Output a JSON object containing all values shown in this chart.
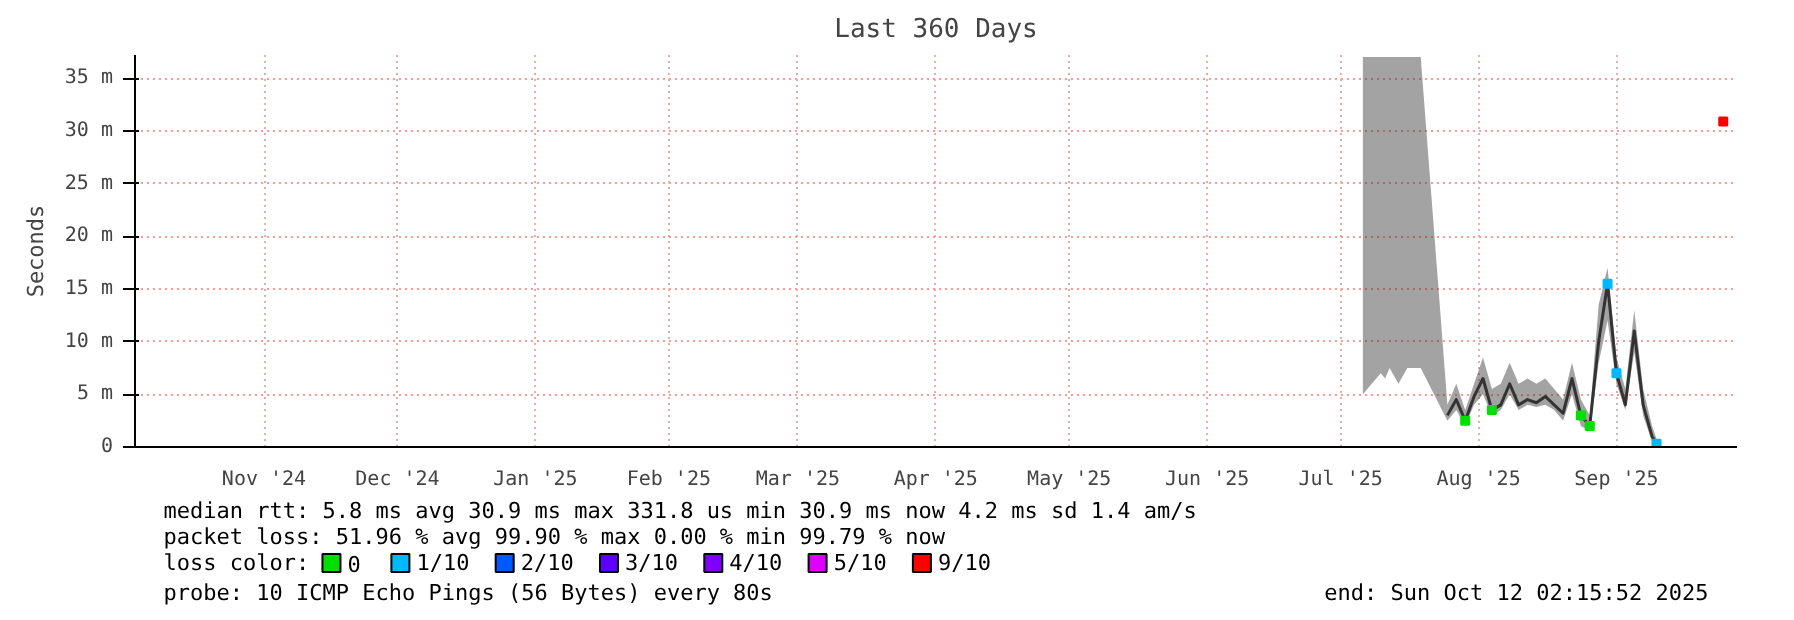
{
  "chart_data": {
    "type": "line",
    "title": "Last 360 Days",
    "ylabel": "Seconds",
    "x": [
      "2025-07-20",
      "2025-07-21",
      "2025-07-24",
      "2025-07-25",
      "2025-07-26",
      "2025-07-27",
      "2025-07-28",
      "2025-07-29",
      "2025-07-30",
      "2025-07-31",
      "2025-08-01",
      "2025-08-02",
      "2025-08-03",
      "2025-08-08",
      "2025-08-10",
      "2025-08-12",
      "2025-08-14",
      "2025-08-16",
      "2025-08-18",
      "2025-08-20",
      "2025-08-22",
      "2025-08-24",
      "2025-08-26",
      "2025-08-28",
      "2025-08-30",
      "2025-09-01",
      "2025-09-03",
      "2025-09-05",
      "2025-09-07",
      "2025-09-09",
      "2025-09-11",
      "2025-09-13",
      "2025-09-15",
      "2025-09-17",
      "2025-09-19",
      "2025-09-21",
      "2025-09-23",
      "2025-09-24"
    ],
    "series": [
      {
        "color": "#333333",
        "values": [
          null,
          null,
          null,
          null,
          null,
          null,
          null,
          null,
          null,
          null,
          null,
          null,
          null,
          3,
          4.5,
          2.5,
          4.8,
          6.5,
          3.5,
          4,
          6,
          4,
          4.5,
          4.2,
          4.8,
          4,
          3.2,
          6.5,
          3,
          2,
          10,
          15.5,
          7,
          4,
          11,
          4,
          1,
          0.3
        ],
        "lower": [
          5,
          null,
          7,
          6.5,
          7.5,
          null,
          6,
          null,
          7.5,
          7.5,
          null,
          7.5,
          null,
          2.5,
          3.5,
          2,
          4,
          5,
          3,
          3.5,
          5,
          3.5,
          4,
          3.8,
          4,
          3.5,
          2.5,
          5,
          2,
          1.5,
          8,
          12,
          6,
          3.5,
          9,
          3,
          0.5,
          0
        ],
        "upper": [
          37,
          null,
          37,
          37,
          37,
          null,
          37,
          null,
          37,
          37,
          null,
          37,
          null,
          4,
          6,
          3.5,
          6,
          8.5,
          5.5,
          6,
          8,
          6,
          6.5,
          6,
          6.5,
          5.5,
          4.5,
          8,
          4.5,
          3,
          13.5,
          17,
          8.5,
          5.5,
          13,
          5.5,
          2,
          0.8
        ]
      },
      {
        "name": "0",
        "color": "#00e000",
        "type": "scatter",
        "marker": "square",
        "x": [
          "2025-08-12",
          "2025-08-18",
          "2025-09-07",
          "2025-09-09"
        ],
        "values": [
          2.5,
          3.5,
          3,
          2
        ]
      },
      {
        "name": "1/10",
        "color": "#00b8ff",
        "type": "scatter",
        "marker": "square",
        "x": [
          "2025-09-13",
          "2025-09-15",
          "2025-09-24"
        ],
        "values": [
          15.5,
          7,
          0.3
        ]
      },
      {
        "name": "2/10",
        "color": "#0059ff",
        "type": "scatter",
        "marker": "square",
        "values": [
          null,
          null,
          null,
          null,
          null,
          null,
          null,
          null,
          null,
          null,
          null,
          null,
          null,
          null,
          null,
          null,
          null,
          null,
          null,
          null,
          null,
          null,
          null,
          null,
          null,
          null,
          null,
          null,
          null,
          null,
          null,
          null,
          null,
          null,
          null,
          null,
          null,
          null
        ]
      },
      {
        "name": "3/10",
        "color": "#5e00ff",
        "type": "scatter",
        "marker": "square",
        "values": [
          null,
          null,
          null,
          null,
          null,
          null,
          null,
          null,
          null,
          null,
          null,
          null,
          null,
          null,
          null,
          null,
          null,
          null,
          null,
          null,
          null,
          null,
          null,
          null,
          null,
          null,
          null,
          null,
          null,
          null,
          null,
          null,
          null,
          null,
          null,
          null,
          null,
          null
        ]
      },
      {
        "name": "4/10",
        "color": "#7e00ff",
        "type": "scatter",
        "marker": "square",
        "values": [
          null,
          null,
          null,
          null,
          null,
          null,
          null,
          null,
          null,
          null,
          null,
          null,
          null,
          null,
          null,
          null,
          null,
          null,
          null,
          null,
          null,
          null,
          null,
          null,
          null,
          null,
          null,
          null,
          null,
          null,
          null,
          null,
          null,
          null,
          null,
          null,
          null,
          null
        ]
      },
      {
        "name": "5/10",
        "color": "#dd00ff",
        "type": "scatter",
        "marker": "square",
        "values": [
          null,
          null,
          null,
          null,
          null,
          null,
          null,
          null,
          null,
          null,
          null,
          null,
          null,
          null,
          null,
          null,
          null,
          null,
          null,
          null,
          null,
          null,
          null,
          null,
          null,
          null,
          null,
          null,
          null,
          null,
          null,
          null,
          null,
          null,
          null,
          null,
          null,
          null
        ]
      },
      {
        "name": "9/10",
        "color": "#ff0000",
        "type": "scatter",
        "marker": "square",
        "x": [
          "2025-10-09"
        ],
        "values": [
          30.9
        ]
      }
    ],
    "legend_title": "loss color:",
    "legend": "bottom",
    "xlim": [
      "2024-10-17",
      "2025-10-12T02:15"
    ],
    "xticks": [
      {
        "value": "2024-11-15",
        "label": "Nov '24"
      },
      {
        "value": "2024-12-15",
        "label": "Dec '24"
      },
      {
        "value": "2025-01-15",
        "label": "Jan '25"
      },
      {
        "value": "2025-02-14",
        "label": "Feb '25"
      },
      {
        "value": "2025-03-15",
        "label": "Mar '25"
      },
      {
        "value": "2025-04-15",
        "label": "Apr '25"
      },
      {
        "value": "2025-05-15",
        "label": "May '25"
      },
      {
        "value": "2025-06-15",
        "label": "Jun '25"
      },
      {
        "value": "2025-07-15",
        "label": "Jul '25"
      },
      {
        "value": "2025-08-15",
        "label": "Aug '25"
      },
      {
        "value": "2025-09-15",
        "label": "Sep '25"
      }
    ],
    "ylim": [
      0,
      37.2
    ],
    "yticks": [
      0,
      {
        "value": 5,
        "label": "5 m"
      },
      {
        "value": 10,
        "label": "10 m"
      },
      {
        "value": 15,
        "label": "15 m"
      },
      {
        "value": 20,
        "label": "20 m"
      },
      {
        "value": 25,
        "label": "25 m"
      },
      {
        "value": 30,
        "label": "30 m"
      },
      {
        "value": 35,
        "label": "35 m"
      }
    ],
    "grid": true,
    "annotations": [
      "median rtt:  5.8 ms avg  30.9 ms max  331.8 us min  30.9 ms now  4.2 ms sd  1.4   am/s",
      "packet loss: 51.96 % avg  99.90 % max  0.00 % min  99.79 % now",
      "probe:       10 ICMP Echo Pings (56 Bytes) every 80s",
      "end: Sun Oct 12 02:15:52 2025"
    ]
  }
}
